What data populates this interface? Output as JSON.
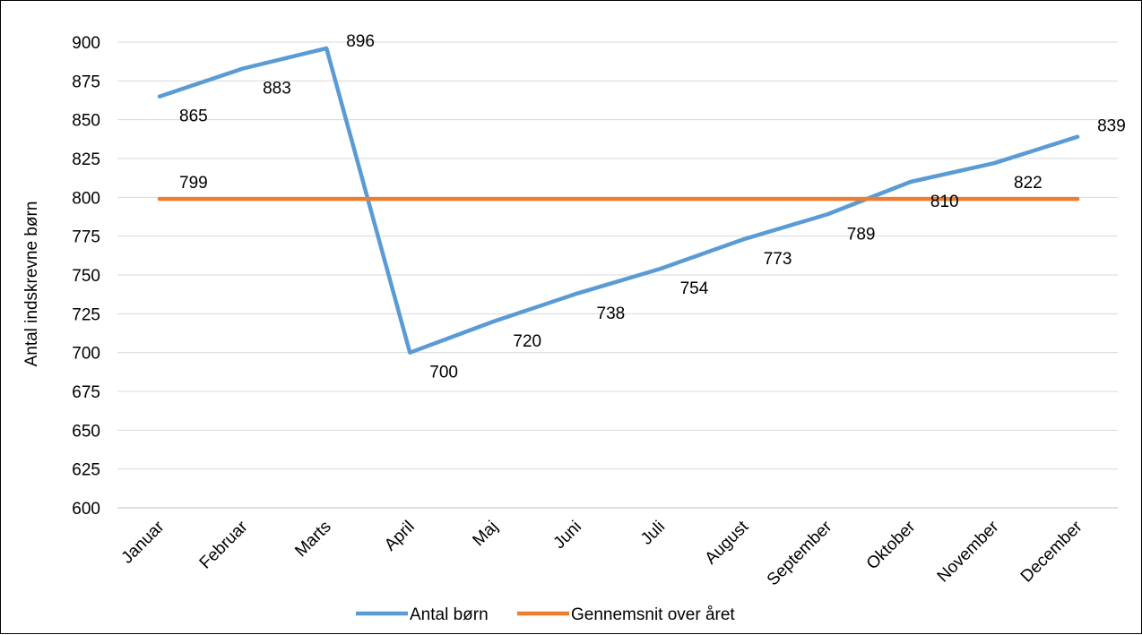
{
  "chart_data": {
    "type": "line",
    "title": "",
    "xlabel": "",
    "ylabel": "Antal indskrevne børn",
    "ylim": [
      600,
      900
    ],
    "ytick_step": 25,
    "yticks": [
      "600",
      "625",
      "650",
      "675",
      "700",
      "725",
      "750",
      "775",
      "800",
      "825",
      "850",
      "875",
      "900"
    ],
    "grid": true,
    "legend_position": "bottom",
    "categories": [
      "Januar",
      "Februar",
      "Marts",
      "April",
      "Maj",
      "Juni",
      "Juli",
      "August",
      "September",
      "Oktober",
      "November",
      "December"
    ],
    "series": [
      {
        "name": "Antal børn",
        "color": "#5B9BD5",
        "values": [
          865,
          883,
          896,
          700,
          720,
          738,
          754,
          773,
          789,
          810,
          822,
          839
        ],
        "data_labels": [
          "865",
          "883",
          "896",
          "700",
          "720",
          "738",
          "754",
          "773",
          "789",
          "810",
          "822",
          "839"
        ]
      },
      {
        "name": "Gennemsnit over året",
        "color": "#ED7D31",
        "values": [
          799,
          799,
          799,
          799,
          799,
          799,
          799,
          799,
          799,
          799,
          799,
          799
        ],
        "data_labels": [
          "799"
        ]
      }
    ]
  }
}
